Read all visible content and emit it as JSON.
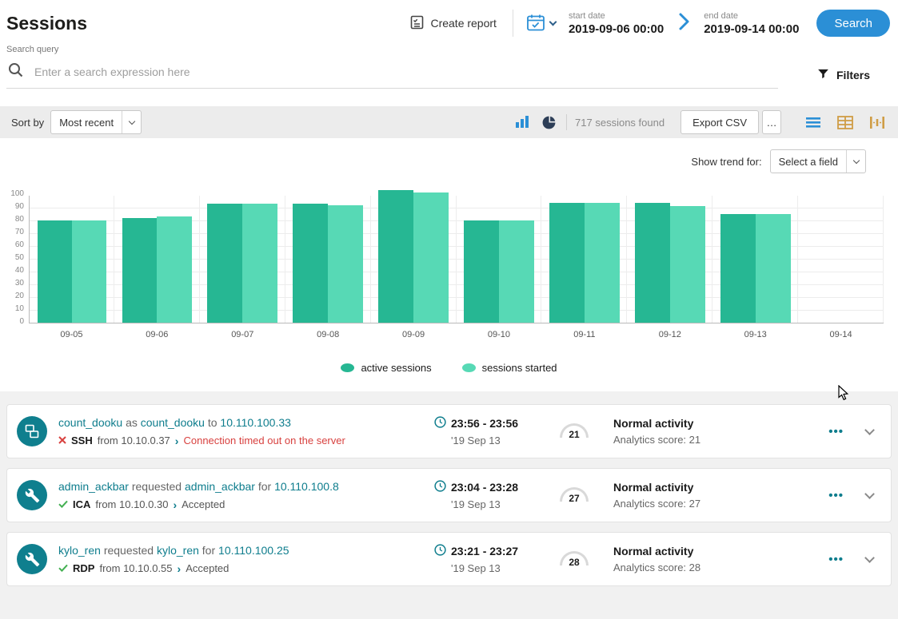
{
  "theme": {
    "accent_blue": "#2b8fd6",
    "teal": "#0e7d8d",
    "bar_dark": "#26b793",
    "bar_light": "#57d9b5",
    "error_red": "#d8413f",
    "ok_green": "#43b052"
  },
  "header": {
    "title": "Sessions",
    "create_report": "Create report",
    "start_date_label": "start date",
    "start_date": "2019-09-06 00:00",
    "end_date_label": "end date",
    "end_date": "2019-09-14 00:00",
    "search_button": "Search"
  },
  "search": {
    "label": "Search query",
    "placeholder": "Enter a search expression here",
    "filters_label": "Filters"
  },
  "toolbar": {
    "sort_by_label": "Sort by",
    "sort_value": "Most recent",
    "results_count": "717 sessions found",
    "export_csv": "Export CSV",
    "more_button": "…"
  },
  "trend": {
    "label": "Show trend for:",
    "select_value": "Select a field"
  },
  "chart_data": {
    "type": "bar",
    "categories": [
      "09-05",
      "09-06",
      "09-07",
      "09-08",
      "09-09",
      "09-10",
      "09-11",
      "09-12",
      "09-13",
      "09-14"
    ],
    "series": [
      {
        "name": "active sessions",
        "color": "#26b793",
        "values": [
          80,
          82,
          93,
          93,
          104,
          80,
          94,
          94,
          85,
          null
        ]
      },
      {
        "name": "sessions started",
        "color": "#57d9b5",
        "values": [
          80,
          83,
          93,
          92,
          102,
          80,
          94,
          91,
          85,
          null
        ]
      }
    ],
    "ylim": [
      0,
      100
    ],
    "yticks": [
      0,
      10,
      20,
      30,
      40,
      50,
      60,
      70,
      80,
      90,
      100
    ],
    "legend_position": "bottom",
    "grid": true
  },
  "sessions": [
    {
      "user": "count_dooku",
      "rel1": "as",
      "user2": "count_dooku",
      "rel2": "to",
      "target": "10.110.100.33",
      "protocol": "SSH",
      "from": "from 10.10.0.37",
      "result": "Connection timed out on the server",
      "time": "23:56 - 23:56",
      "date": "'19 Sep 13",
      "score": "21",
      "activity": "Normal activity",
      "score_text": "Analytics score: 21",
      "menu": "•••"
    },
    {
      "user": "admin_ackbar",
      "rel1": "requested",
      "user2": "admin_ackbar",
      "rel2": "for",
      "target": "10.110.100.8",
      "protocol": "ICA",
      "from": "from 10.10.0.30",
      "result": "Accepted",
      "time": "23:04 - 23:28",
      "date": "'19 Sep 13",
      "score": "27",
      "activity": "Normal activity",
      "score_text": "Analytics score: 27",
      "menu": "•••"
    },
    {
      "user": "kylo_ren",
      "rel1": "requested",
      "user2": "kylo_ren",
      "rel2": "for",
      "target": "10.110.100.25",
      "protocol": "RDP",
      "from": "from 10.10.0.55",
      "result": "Accepted",
      "time": "23:21 - 23:27",
      "date": "'19 Sep 13",
      "score": "28",
      "activity": "Normal activity",
      "score_text": "Analytics score: 28",
      "menu": "•••"
    }
  ]
}
